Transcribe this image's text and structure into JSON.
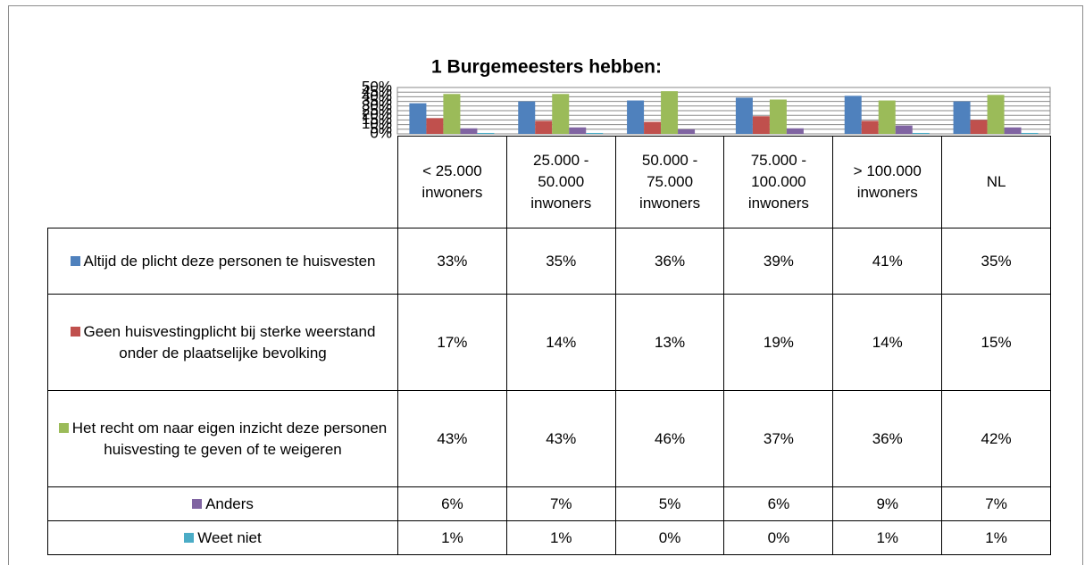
{
  "chart_data": {
    "type": "bar",
    "title": "1 Burgemeesters hebben:",
    "categories": [
      "< 25.000 inwoners",
      "25.000 - 50.000 inwoners",
      "50.000 - 75.000 inwoners",
      "75.000 - 100.000 inwoners",
      "> 100.000 inwoners",
      "NL"
    ],
    "series": [
      {
        "name": "Altijd de plicht deze personen te huisvesten",
        "color": "#4f81bd",
        "values": [
          33,
          35,
          36,
          39,
          41,
          35
        ],
        "value_labels": [
          "33%",
          "35%",
          "36%",
          "39%",
          "41%",
          "35%"
        ]
      },
      {
        "name": "Geen huisvestingplicht bij sterke weerstand onder de plaatselijke bevolking",
        "color": "#c0504d",
        "values": [
          17,
          14,
          13,
          19,
          14,
          15
        ],
        "value_labels": [
          "17%",
          "14%",
          "13%",
          "19%",
          "14%",
          "15%"
        ]
      },
      {
        "name": "Het recht om naar eigen inzicht deze personen huisvesting te geven of te weigeren",
        "color": "#9bbb59",
        "values": [
          43,
          43,
          46,
          37,
          36,
          42
        ],
        "value_labels": [
          "43%",
          "43%",
          "46%",
          "37%",
          "36%",
          "42%"
        ]
      },
      {
        "name": "Anders",
        "color": "#8064a2",
        "values": [
          6,
          7,
          5,
          6,
          9,
          7
        ],
        "value_labels": [
          "6%",
          "7%",
          "5%",
          "6%",
          "9%",
          "7%"
        ]
      },
      {
        "name": "Weet niet",
        "color": "#4bacc6",
        "values": [
          1,
          1,
          0,
          0,
          1,
          1
        ],
        "value_labels": [
          "1%",
          "1%",
          "0%",
          "0%",
          "1%",
          "1%"
        ]
      }
    ],
    "ylim": [
      0,
      50
    ],
    "yticks": [
      {
        "value": 0,
        "label": "0%"
      },
      {
        "value": 5,
        "label": "5%"
      },
      {
        "value": 10,
        "label": "10%"
      },
      {
        "value": 15,
        "label": "15%"
      },
      {
        "value": 20,
        "label": "20%"
      },
      {
        "value": 25,
        "label": "25%"
      },
      {
        "value": 30,
        "label": "30%"
      },
      {
        "value": 35,
        "label": "35%"
      },
      {
        "value": 40,
        "label": "40%"
      },
      {
        "value": 45,
        "label": "45%"
      },
      {
        "value": 50,
        "label": "50%"
      }
    ],
    "grid": true
  }
}
